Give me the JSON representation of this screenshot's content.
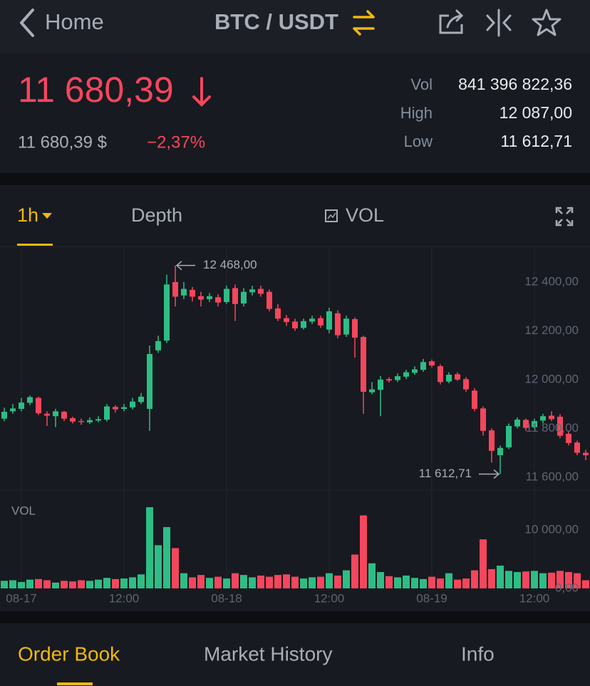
{
  "header": {
    "back": "Home",
    "pair": "BTC / USDT"
  },
  "price": {
    "last": "11 680,39",
    "fiat": "11 680,39 $",
    "change": "−2,37%"
  },
  "stats": [
    {
      "label": "Vol",
      "value": "841 396 822,36"
    },
    {
      "label": "High",
      "value": "12 087,00"
    },
    {
      "label": "Low",
      "value": "11 612,71"
    }
  ],
  "tabs": {
    "interval": "1h",
    "depth": "Depth",
    "vol": "VOL"
  },
  "bottom_tabs": [
    "Order Book",
    "Market History",
    "Info"
  ],
  "chart_data": {
    "type": "candlestick",
    "up_color": "#2ebd85",
    "down_color": "#f6465d",
    "grid": true,
    "categories": [
      null,
      null,
      "08-17",
      null,
      null,
      null,
      null,
      null,
      null,
      null,
      null,
      null,
      null,
      null,
      "12:00",
      null,
      null,
      null,
      null,
      null,
      null,
      null,
      null,
      null,
      null,
      null,
      "08-18",
      null,
      null,
      null,
      null,
      null,
      null,
      null,
      null,
      null,
      null,
      null,
      "12:00",
      null,
      null,
      null,
      null,
      null,
      null,
      null,
      null,
      null,
      null,
      null,
      "08-19",
      null,
      null,
      null,
      null,
      null,
      null,
      null,
      null,
      null,
      null,
      null,
      "12:00",
      null,
      null,
      null,
      null,
      null,
      null
    ],
    "open": [
      11840,
      11870,
      11880,
      11905,
      11925,
      11860,
      11850,
      11868,
      11842,
      11830,
      11825,
      11832,
      11836,
      11888,
      11880,
      11886,
      11908,
      11880,
      12120,
      12160,
      12400,
      12345,
      12368,
      12342,
      12330,
      12338,
      12318,
      12375,
      12312,
      12358,
      12372,
      12360,
      12292,
      12252,
      12238,
      12212,
      12238,
      12252,
      12205,
      12272,
      12185,
      12248,
      12175,
      11948,
      11958,
      12002,
      11998,
      12012,
      12028,
      12040,
      12075,
      12055,
      11992,
      12022,
      12002,
      11955,
      11882,
      11792,
      11690,
      11722,
      11808,
      11835,
      11805,
      11832,
      11852,
      11848,
      11778,
      11742,
      11700
    ],
    "high": [
      11885,
      11900,
      11925,
      11935,
      11930,
      11870,
      11880,
      11872,
      11848,
      11840,
      11845,
      11850,
      11900,
      11895,
      11900,
      11925,
      11945,
      12140,
      12180,
      12430,
      12468,
      12400,
      12380,
      12360,
      12355,
      12350,
      12385,
      12390,
      12375,
      12385,
      12385,
      12370,
      12310,
      12265,
      12250,
      12250,
      12262,
      12262,
      12295,
      12285,
      12262,
      12255,
      12180,
      11990,
      12015,
      12010,
      12025,
      12040,
      12055,
      12085,
      12082,
      12062,
      12030,
      12030,
      12010,
      11965,
      11890,
      11800,
      11730,
      11820,
      11845,
      11840,
      11840,
      11860,
      11870,
      11858,
      11790,
      11750,
      11712
    ],
    "low": [
      11830,
      11860,
      11870,
      11895,
      11855,
      11810,
      11805,
      11830,
      11820,
      11815,
      11818,
      11825,
      11828,
      11865,
      11870,
      11878,
      11900,
      11790,
      12110,
      12150,
      12300,
      12330,
      12320,
      12300,
      12318,
      12300,
      12310,
      12240,
      12300,
      12345,
      12340,
      12280,
      12240,
      12220,
      12200,
      12205,
      12228,
      12212,
      12190,
      12170,
      12175,
      12090,
      11860,
      11940,
      11850,
      11988,
      11990,
      12002,
      12020,
      12032,
      12050,
      11980,
      11985,
      11995,
      11950,
      11870,
      11770,
      11660,
      11612.71,
      11715,
      11800,
      11790,
      11798,
      11820,
      11830,
      11760,
      11730,
      11690,
      11670
    ],
    "close": [
      11868,
      11882,
      11906,
      11928,
      11862,
      11852,
      11870,
      11840,
      11828,
      11826,
      11834,
      11838,
      11890,
      11878,
      11887,
      11910,
      11930,
      12105,
      12158,
      12390,
      12340,
      12372,
      12340,
      12328,
      12342,
      12316,
      12372,
      12310,
      12360,
      12370,
      12352,
      12290,
      12250,
      12236,
      12210,
      12240,
      12250,
      12222,
      12280,
      12182,
      12250,
      12172,
      11950,
      11960,
      12000,
      11996,
      12014,
      12030,
      12042,
      12072,
      12058,
      11990,
      12020,
      12000,
      11960,
      11880,
      11790,
      11708,
      11720,
      11810,
      11836,
      11802,
      11830,
      11850,
      11838,
      11770,
      11740,
      11700,
      11690
    ],
    "volume": [
      1300,
      1400,
      1100,
      1500,
      1600,
      1400,
      1000,
      1300,
      1200,
      1400,
      1300,
      1500,
      1800,
      1600,
      1700,
      1900,
      2400,
      13900,
      7400,
      10500,
      6900,
      2600,
      1900,
      2300,
      1800,
      2000,
      1700,
      2600,
      2300,
      1900,
      2200,
      2000,
      2300,
      2400,
      2000,
      1700,
      1900,
      2000,
      2600,
      2200,
      3100,
      5800,
      12500,
      4300,
      2800,
      2100,
      1900,
      2200,
      1800,
      1600,
      2000,
      1700,
      2600,
      1500,
      1700,
      3100,
      8400,
      3300,
      3900,
      3000,
      2800,
      2900,
      3000,
      2600,
      2700,
      3000,
      2800,
      2600,
      1400
    ],
    "ylim": [
      11547,
      12540
    ],
    "yticks": [
      {
        "value": 11600,
        "label": "11 600,00"
      },
      {
        "value": 11800,
        "label": "11 800,00"
      },
      {
        "value": 12000,
        "label": "12 000,00"
      },
      {
        "value": 12200,
        "label": "12 200,00"
      },
      {
        "value": 12400,
        "label": "12 400,00"
      }
    ],
    "annotations": [
      {
        "value": 12468,
        "label": "12 468,00"
      },
      {
        "value": 11612.71,
        "label": "11 612,71"
      }
    ],
    "volume_label": "VOL",
    "y2lim": [
      0,
      16830
    ],
    "y2ticks": [
      {
        "value": 0,
        "label": "0,00"
      },
      {
        "value": 10000,
        "label": "10 000,00"
      }
    ]
  }
}
